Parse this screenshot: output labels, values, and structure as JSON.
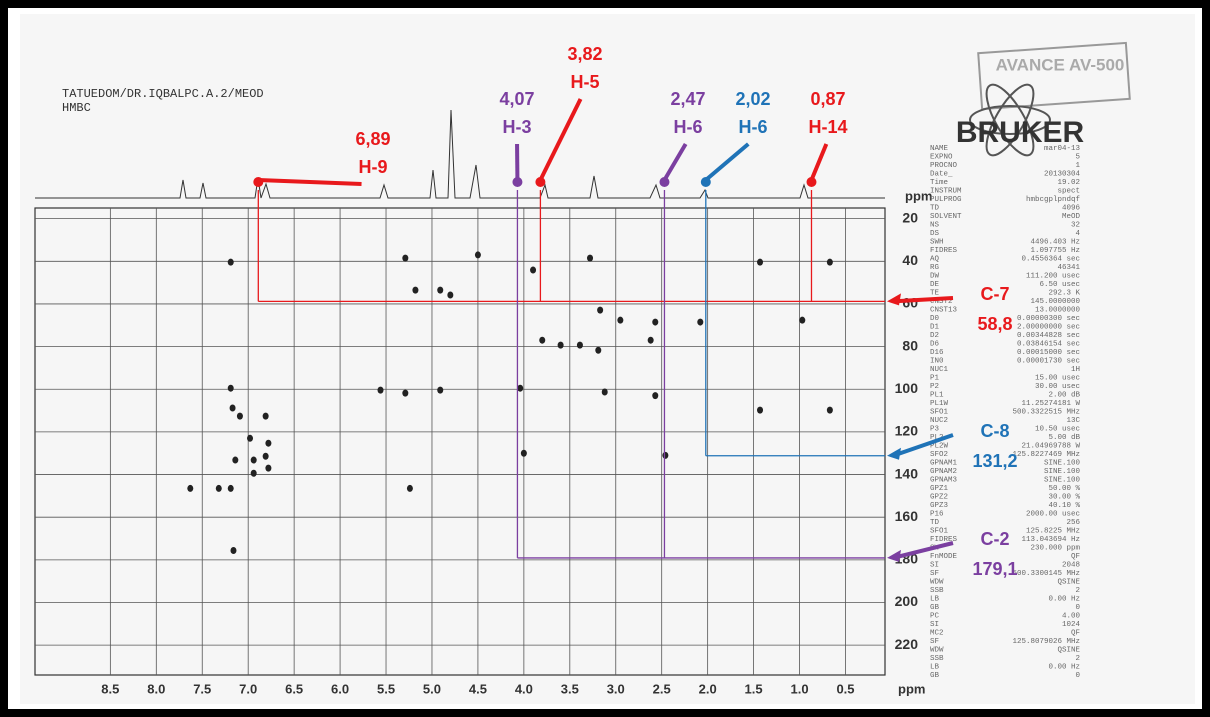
{
  "header": {
    "sample": "TATUEDOM/DR.IQBALPC.A.2/MEOD",
    "experiment": "HMBC",
    "logo": "BRUKER",
    "stamp": "AVANCE AV-500"
  },
  "chart_data": {
    "type": "scatter",
    "x_unit": "ppm",
    "y_unit": "ppm",
    "xlim": [
      9.32,
      0.07
    ],
    "ylim": [
      15,
      234
    ],
    "xticks": [
      8.5,
      {
        "value": 8,
        "label": "8.0"
      },
      7.5,
      {
        "value": 7,
        "label": "7.0"
      },
      6.5,
      {
        "value": 6,
        "label": "6.0"
      },
      5.5,
      {
        "value": 5,
        "label": "5.0"
      },
      4.5,
      {
        "value": 4,
        "label": "4.0"
      },
      3.5,
      {
        "value": 3,
        "label": "3.0"
      },
      2.5,
      {
        "value": 2,
        "label": "2.0"
      },
      1.5,
      {
        "value": 1,
        "label": "1.0"
      },
      0.5
    ],
    "yticks": [
      20,
      40,
      60,
      80,
      100,
      120,
      140,
      160,
      180,
      200,
      220
    ],
    "grid": true,
    "peaks": {
      "x": [
        7.19,
        5.29,
        5.18,
        4.91,
        4.8,
        3.9,
        4.5,
        3.28,
        2.95,
        3.17,
        3.39,
        3.19,
        3.6,
        3.8,
        2.62,
        4.91,
        5.29,
        5.56,
        3.12,
        4.04,
        7.19,
        7.17,
        7.09,
        6.81,
        6.98,
        6.78,
        6.81,
        6.94,
        6.78,
        7.14,
        6.94,
        7.32,
        7.19,
        7.63,
        5.24,
        7.16,
        4.0,
        2.46,
        1.43,
        0.67,
        0.67,
        1.43,
        0.97,
        2.08,
        2.57,
        2.57
      ],
      "y": [
        40.4,
        38.5,
        53.5,
        53.5,
        55.8,
        44.1,
        37,
        38.5,
        67.6,
        62.9,
        79.3,
        81.7,
        79.3,
        77,
        77,
        100.4,
        101.8,
        100.4,
        101.3,
        99.5,
        99.5,
        108.8,
        112.6,
        112.6,
        123,
        125.3,
        131.4,
        133.2,
        137,
        133.2,
        139.4,
        146.5,
        146.5,
        146.5,
        146.5,
        175.6,
        130,
        131,
        109.8,
        109.8,
        40.4,
        40.4,
        67.6,
        68.5,
        68.5,
        103
      ],
      "color": "#222"
    },
    "h_annotations": [
      {
        "value": 6.89,
        "label": "6,89",
        "name": "H-9",
        "color": "#e8191c"
      },
      {
        "value": 4.07,
        "label": "4,07",
        "name": "H-3",
        "color": "#7b3fa0"
      },
      {
        "value": 3.82,
        "label": "3,82",
        "name": "H-5",
        "color": "#e8191c"
      },
      {
        "value": 2.47,
        "label": "2,47",
        "name": "H-6",
        "color": "#7b3fa0"
      },
      {
        "value": 2.02,
        "label": "2,02",
        "name": "H-6",
        "color": "#1f73b7"
      },
      {
        "value": 0.87,
        "label": "0,87",
        "name": "H-14",
        "color": "#e8191c"
      }
    ],
    "c_annotations": [
      {
        "value": 58.8,
        "label": "58,8",
        "name": "C-7",
        "color": "#e8191c"
      },
      {
        "value": 131.2,
        "label": "131,2",
        "name": "C-8",
        "color": "#1f73b7"
      },
      {
        "value": 179.1,
        "label": "179,1",
        "name": "C-2",
        "color": "#7b3fa0"
      }
    ]
  },
  "parameters": [
    [
      "NAME",
      "mar04-13"
    ],
    [
      "EXPNO",
      "5"
    ],
    [
      "PROCNO",
      "1"
    ],
    [
      "Date_",
      "20130304"
    ],
    [
      "Time",
      "19.02"
    ],
    [
      "INSTRUM",
      "spect"
    ],
    [
      "PULPROG",
      "hmbcgplpndqf"
    ],
    [
      "TD",
      "4096"
    ],
    [
      "SOLVENT",
      "MeOD"
    ],
    [
      "NS",
      "32"
    ],
    [
      "DS",
      "4"
    ],
    [
      "SWH",
      "4496.403 Hz"
    ],
    [
      "FIDRES",
      "1.097755 Hz"
    ],
    [
      "AQ",
      "0.4556364 sec"
    ],
    [
      "RG",
      "46341"
    ],
    [
      "DW",
      "111.200 usec"
    ],
    [
      "DE",
      "6.50 usec"
    ],
    [
      "TE",
      "292.3 K"
    ],
    [
      "CNST2",
      "145.0000000"
    ],
    [
      "CNST13",
      "13.0000000"
    ],
    [
      "D0",
      "0.00000300 sec"
    ],
    [
      "D1",
      "2.00000000 sec"
    ],
    [
      "D2",
      "0.00344828 sec"
    ],
    [
      "D6",
      "0.03846154 sec"
    ],
    [
      "D16",
      "0.00015000 sec"
    ],
    [
      "IN0",
      "0.00001730 sec"
    ],
    [
      "NUC1",
      "1H"
    ],
    [
      "P1",
      "15.00 usec"
    ],
    [
      "P2",
      "30.00 usec"
    ],
    [
      "PL1",
      "2.00 dB"
    ],
    [
      "PL1W",
      "11.25274181 W"
    ],
    [
      "SFO1",
      "500.3322515 MHz"
    ],
    [
      "NUC2",
      "13C"
    ],
    [
      "P3",
      "10.50 usec"
    ],
    [
      "PL2",
      "5.00 dB"
    ],
    [
      "PL2W",
      "21.04969788 W"
    ],
    [
      "SFO2",
      "125.8227469 MHz"
    ],
    [
      "GPNAM1",
      "SINE.100"
    ],
    [
      "GPNAM2",
      "SINE.100"
    ],
    [
      "GPNAM3",
      "SINE.100"
    ],
    [
      "GPZ1",
      "50.00 %"
    ],
    [
      "GPZ2",
      "30.00 %"
    ],
    [
      "GPZ3",
      "40.10 %"
    ],
    [
      "P16",
      "2000.00 usec"
    ],
    [
      "TD",
      "256"
    ],
    [
      "SFO1",
      "125.8225 MHz"
    ],
    [
      "FIDRES",
      "113.043694 Hz"
    ],
    [
      "SW",
      "230.000 ppm"
    ],
    [
      "FnMODE",
      "QF"
    ],
    [
      "SI",
      "2048"
    ],
    [
      "SF",
      "500.3300145 MHz"
    ],
    [
      "WDW",
      "QSINE"
    ],
    [
      "SSB",
      "2"
    ],
    [
      "LB",
      "0.00 Hz"
    ],
    [
      "GB",
      "0"
    ],
    [
      "PC",
      "4.00"
    ],
    [
      "SI",
      "1024"
    ],
    [
      "MC2",
      "QF"
    ],
    [
      "SF",
      "125.8079026 MHz"
    ],
    [
      "WDW",
      "QSINE"
    ],
    [
      "SSB",
      "2"
    ],
    [
      "LB",
      "0.00 Hz"
    ],
    [
      "GB",
      "0"
    ]
  ]
}
